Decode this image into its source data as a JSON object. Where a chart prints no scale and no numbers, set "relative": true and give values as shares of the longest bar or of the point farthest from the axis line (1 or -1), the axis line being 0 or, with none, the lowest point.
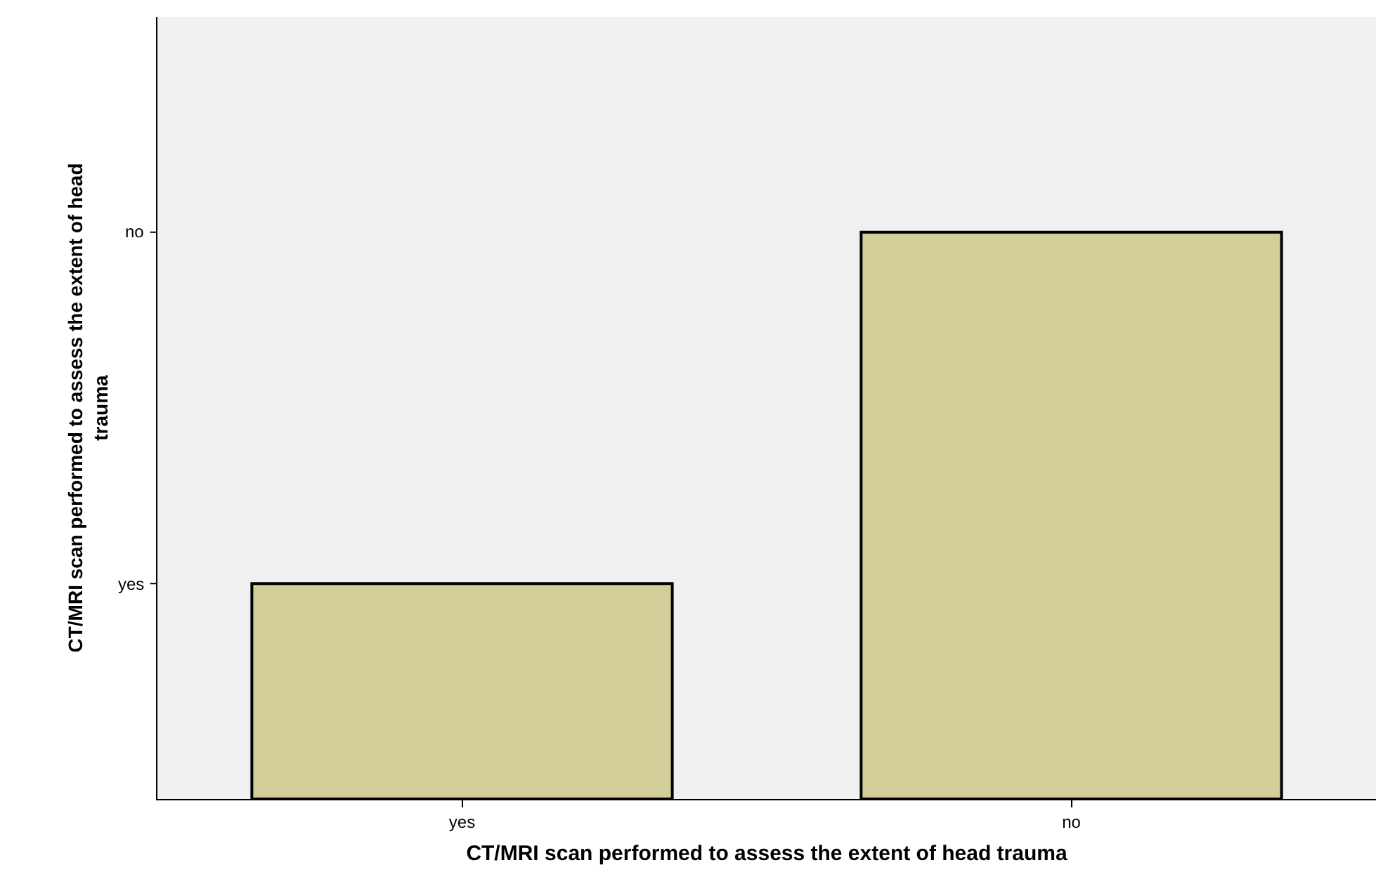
{
  "chart_data": {
    "type": "bar",
    "xlabel": "CT/MRI scan performed to assess the extent of head trauma",
    "ylabel": "CT/MRI scan performed to assess the extent of head trauma",
    "categories": [
      "yes",
      "no"
    ],
    "values": [
      0.38,
      1
    ],
    "color": "#d3ce97",
    "relative": true,
    "annotations": [
      "yes",
      "no"
    ],
    "grid": false
  }
}
